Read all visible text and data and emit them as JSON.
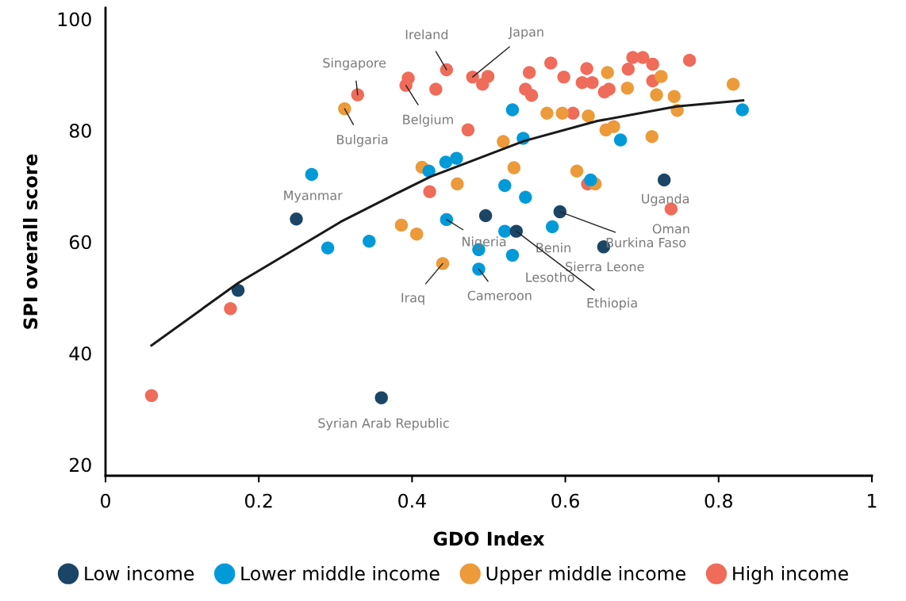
{
  "chart_data": {
    "type": "scatter",
    "xlabel": "GDO Index",
    "ylabel": "SPI overall score",
    "xlim": [
      0,
      1
    ],
    "ylim": [
      18,
      102
    ],
    "xticks": [
      0,
      0.2,
      0.4,
      0.6,
      0.8,
      1
    ],
    "yticks": [
      20,
      40,
      60,
      80,
      100
    ],
    "grid": false,
    "legend": "bottom",
    "marker": "circle",
    "series": [
      {
        "name": "Low income",
        "color": "#1b4566",
        "x": [
          0.173,
          0.249,
          0.36,
          0.496,
          0.536,
          0.593,
          0.65,
          0.729
        ],
        "values": [
          51.3,
          64.1,
          32.0,
          64.7,
          61.9,
          65.4,
          59.1,
          71.1
        ]
      },
      {
        "name": "Lower middle income",
        "color": "#009ad9",
        "x": [
          0.269,
          0.29,
          0.344,
          0.422,
          0.444,
          0.458,
          0.445,
          0.487,
          0.487,
          0.521,
          0.521,
          0.531,
          0.531,
          0.545,
          0.548,
          0.583,
          0.633,
          0.672,
          0.831
        ],
        "values": [
          72.1,
          58.9,
          60.1,
          72.7,
          74.3,
          75.0,
          64.0,
          58.6,
          55.1,
          70.1,
          61.9,
          57.6,
          83.7,
          78.6,
          68.0,
          62.7,
          71.1,
          78.3,
          83.7
        ]
      },
      {
        "name": "Upper middle income",
        "color": "#ec9a3a",
        "x": [
          0.312,
          0.386,
          0.406,
          0.413,
          0.459,
          0.44,
          0.519,
          0.533,
          0.576,
          0.596,
          0.615,
          0.63,
          0.639,
          0.653,
          0.663,
          0.655,
          0.681,
          0.725,
          0.719,
          0.742,
          0.746,
          0.713,
          0.819
        ],
        "values": [
          83.9,
          63.0,
          61.4,
          73.4,
          70.4,
          56.1,
          78.0,
          73.3,
          83.1,
          83.1,
          72.7,
          82.6,
          70.4,
          80.1,
          80.7,
          90.4,
          87.6,
          89.7,
          86.4,
          86.1,
          83.6,
          78.9,
          88.3
        ]
      },
      {
        "name": "High income",
        "color": "#ef6c5a",
        "x": [
          0.06,
          0.163,
          0.329,
          0.395,
          0.392,
          0.431,
          0.445,
          0.473,
          0.479,
          0.499,
          0.492,
          0.423,
          0.553,
          0.581,
          0.598,
          0.628,
          0.622,
          0.635,
          0.548,
          0.556,
          0.651,
          0.657,
          0.682,
          0.688,
          0.701,
          0.714,
          0.714,
          0.762,
          0.61,
          0.629,
          0.738
        ],
        "values": [
          32.4,
          48.0,
          86.4,
          89.4,
          88.1,
          87.4,
          90.9,
          80.1,
          89.6,
          89.7,
          88.3,
          69.0,
          90.4,
          92.1,
          89.6,
          91.1,
          88.6,
          88.6,
          87.4,
          86.3,
          86.9,
          87.4,
          91.0,
          93.1,
          93.1,
          91.9,
          88.9,
          92.6,
          83.1,
          70.4,
          65.9
        ]
      },
      {
        "type": "line",
        "color": "#1a1a1a",
        "marker": "none",
        "x": [
          0.06,
          0.173,
          0.307,
          0.38,
          0.424,
          0.546,
          0.642,
          0.745,
          0.832
        ],
        "values": [
          41.4,
          52.6,
          63.6,
          68.7,
          71.7,
          78.1,
          81.7,
          84.3,
          85.4
        ]
      }
    ],
    "annotations": [
      {
        "text": "Ireland",
        "x": 0.445,
        "y": 90.9
      },
      {
        "text": "Japan",
        "x": 0.479,
        "y": 89.6
      },
      {
        "text": "Singapore",
        "x": 0.329,
        "y": 86.4
      },
      {
        "text": "Belgium",
        "x": 0.392,
        "y": 88.1
      },
      {
        "text": "Bulgaria",
        "x": 0.312,
        "y": 83.9
      },
      {
        "text": "Myanmar",
        "x": 0.269,
        "y": 72.1
      },
      {
        "text": "Nigeria",
        "x": 0.445,
        "y": 64.0
      },
      {
        "text": "Benin",
        "x": 0.583,
        "y": 62.7
      },
      {
        "text": "Burkina Faso",
        "x": 0.593,
        "y": 65.4
      },
      {
        "text": "Uganda",
        "x": 0.729,
        "y": 71.1
      },
      {
        "text": "Oman",
        "x": 0.738,
        "y": 65.9
      },
      {
        "text": "Sierra Leone",
        "x": 0.65,
        "y": 59.1
      },
      {
        "text": "Lesotho",
        "x": 0.531,
        "y": 57.6
      },
      {
        "text": "Iraq",
        "x": 0.44,
        "y": 56.1
      },
      {
        "text": "Cameroon",
        "x": 0.487,
        "y": 55.1
      },
      {
        "text": "Ethiopia",
        "x": 0.536,
        "y": 61.9
      },
      {
        "text": "Syrian Arab Republic",
        "x": 0.36,
        "y": 32.0
      }
    ]
  }
}
